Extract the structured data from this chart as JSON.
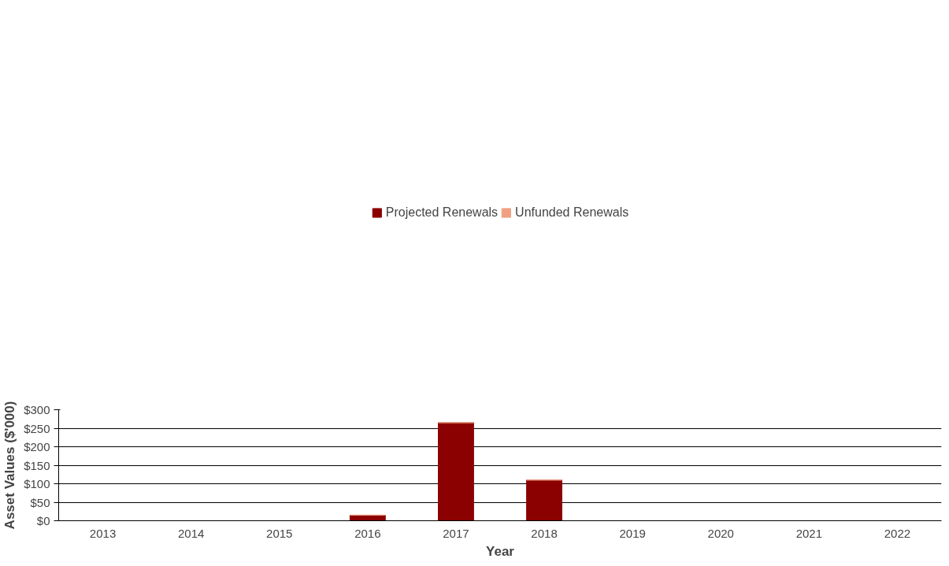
{
  "chart_data": {
    "type": "bar",
    "stacked": true,
    "xlabel": "Year",
    "ylabel": "Asset Values ($'000)",
    "categories": [
      "2013",
      "2014",
      "2015",
      "2016",
      "2017",
      "2018",
      "2019",
      "2020",
      "2021",
      "2022"
    ],
    "series": [
      {
        "name": "Projected Renewals",
        "color": "#8b0000",
        "values": [
          0,
          0,
          0,
          15,
          265,
          110,
          0,
          0,
          0,
          0
        ]
      },
      {
        "name": "Unfunded Renewals",
        "color": "#f0a080",
        "values": [
          0,
          0,
          0,
          0,
          0,
          0,
          0,
          0,
          0,
          0
        ]
      }
    ],
    "ylim": [
      0,
      300
    ],
    "yticks": [
      {
        "value": 0,
        "label": "$0"
      },
      {
        "value": 50,
        "label": "$50"
      },
      {
        "value": 100,
        "label": "$100"
      },
      {
        "value": 150,
        "label": "$150"
      },
      {
        "value": 200,
        "label": "$200"
      },
      {
        "value": 250,
        "label": "$250"
      },
      {
        "value": 300,
        "label": "$300"
      }
    ],
    "grid": "y",
    "legend": "top"
  }
}
